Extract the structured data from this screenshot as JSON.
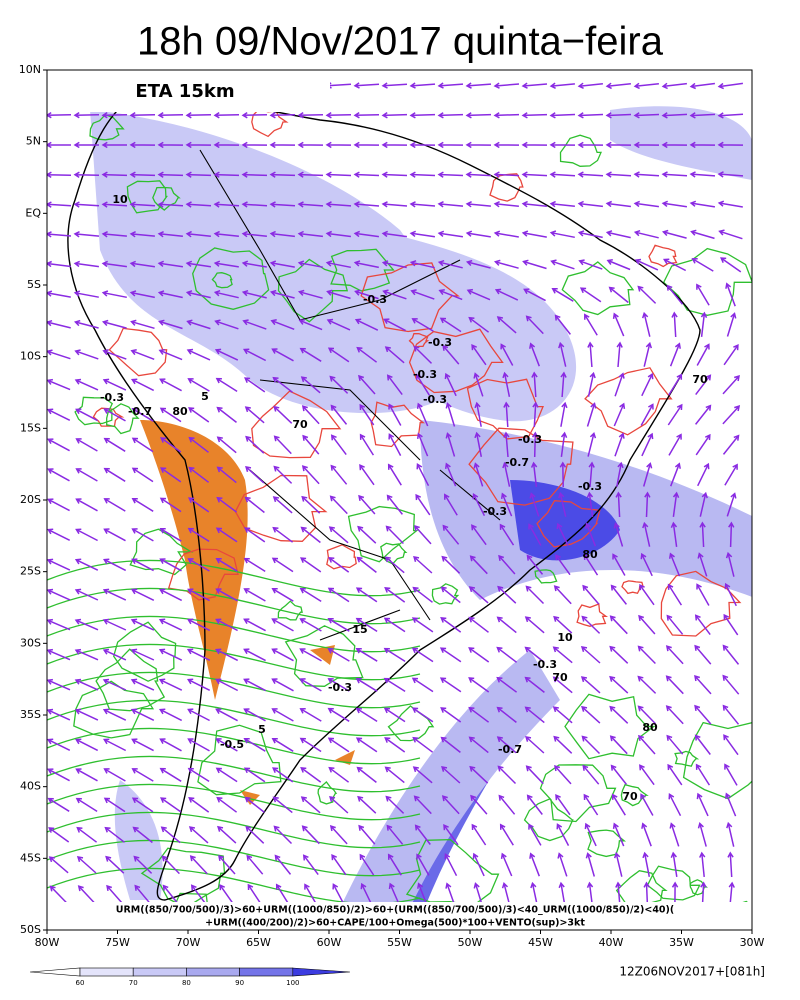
{
  "header": {
    "title": "18h 09/Nov/2017 quinta−feira",
    "model": "ETA 15km"
  },
  "map": {
    "lat_labels": [
      "10N",
      "5N",
      "EQ",
      "5S",
      "10S",
      "15S",
      "20S",
      "25S",
      "30S",
      "35S",
      "40S",
      "45S",
      "50S"
    ],
    "lon_labels": [
      "80W",
      "75W",
      "70W",
      "65W",
      "60W",
      "55W",
      "50W",
      "45W",
      "40W",
      "35W",
      "30W"
    ],
    "contour_labels": [
      "-0.3",
      "-0.7",
      "80",
      "70",
      "5",
      "10",
      "-0.3",
      "-0.3",
      "-0.3",
      "-0.3",
      "-0.7",
      "-0.3",
      "-0.3",
      "15",
      "-0.3",
      "-0.7",
      "-0.3",
      "70",
      "80",
      "70",
      "-0.3",
      "-0.5",
      "5",
      "10",
      "70",
      "80"
    ],
    "formula": [
      "URM((850/700/500)/3)>60+URM((1000/850)/2)>60+(URM((850/700/500)/3)<40_URM((1000/850)/2)<40)(",
      "+URM((400/200)/2)>60+CAPE/100+Omega(500)*100+VENTO(sup)>3kt"
    ]
  },
  "footer": {
    "colorbar_labels": [
      "60",
      "70",
      "80",
      "90",
      "100"
    ],
    "run": "12Z06NOV2017+[081h]"
  }
}
